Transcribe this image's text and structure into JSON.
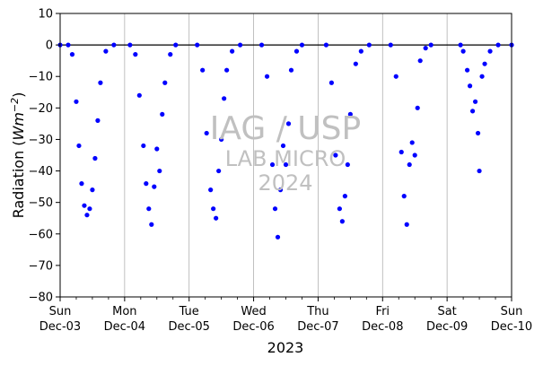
{
  "chart_data": {
    "type": "scatter",
    "ylabel": "Radiation ($Wm^{-2}$)",
    "ylabel_parts": {
      "main": "Radiation (",
      "unit": "Wm",
      "sup": "−2",
      "close": ")"
    },
    "xlabel": "2023",
    "ylim": [
      -80,
      10
    ],
    "yticks": [
      10,
      0,
      -10,
      -20,
      -30,
      -40,
      -50,
      -60,
      -70,
      -80
    ],
    "ytick_labels": [
      "10",
      "0",
      "−10",
      "−20",
      "−30",
      "−40",
      "−50",
      "−60",
      "−70",
      "−80"
    ],
    "xlim": [
      "2023-12-03",
      "2023-12-10"
    ],
    "xticks": [
      {
        "day": "Sun",
        "date": "Dec-03"
      },
      {
        "day": "Mon",
        "date": "Dec-04"
      },
      {
        "day": "Tue",
        "date": "Dec-05"
      },
      {
        "day": "Wed",
        "date": "Dec-06"
      },
      {
        "day": "Thu",
        "date": "Dec-07"
      },
      {
        "day": "Fri",
        "date": "Dec-08"
      },
      {
        "day": "Sat",
        "date": "Dec-09"
      },
      {
        "day": "Sun",
        "date": "Dec-10"
      }
    ],
    "grid": "vertical",
    "zero_line": true,
    "marker_color": "#0000ff",
    "series": [
      {
        "points": [
          [
            "2023-12-03 00:00",
            0
          ],
          [
            "2023-12-03 03:00",
            0
          ],
          [
            "2023-12-03 04:30",
            -3
          ],
          [
            "2023-12-03 06:00",
            -18
          ],
          [
            "2023-12-03 07:00",
            -32
          ],
          [
            "2023-12-03 08:00",
            -44
          ],
          [
            "2023-12-03 09:00",
            -51
          ],
          [
            "2023-12-03 10:00",
            -54
          ],
          [
            "2023-12-03 11:00",
            -52
          ],
          [
            "2023-12-03 12:00",
            -46
          ],
          [
            "2023-12-03 13:00",
            -36
          ],
          [
            "2023-12-03 14:00",
            -24
          ],
          [
            "2023-12-03 15:00",
            -12
          ],
          [
            "2023-12-03 17:00",
            -2
          ],
          [
            "2023-12-03 20:00",
            0
          ],
          [
            "2023-12-04 02:00",
            0
          ],
          [
            "2023-12-04 04:00",
            -3
          ],
          [
            "2023-12-04 05:30",
            -16
          ],
          [
            "2023-12-04 07:00",
            -32
          ],
          [
            "2023-12-04 08:00",
            -44
          ],
          [
            "2023-12-04 09:00",
            -52
          ],
          [
            "2023-12-04 10:00",
            -57
          ],
          [
            "2023-12-04 11:00",
            -45
          ],
          [
            "2023-12-04 12:00",
            -33
          ],
          [
            "2023-12-04 13:00",
            -40
          ],
          [
            "2023-12-04 14:00",
            -22
          ],
          [
            "2023-12-04 15:00",
            -12
          ],
          [
            "2023-12-04 17:00",
            -3
          ],
          [
            "2023-12-04 19:00",
            0
          ],
          [
            "2023-12-05 03:00",
            0
          ],
          [
            "2023-12-05 05:00",
            -8
          ],
          [
            "2023-12-05 06:30",
            -28
          ],
          [
            "2023-12-05 08:00",
            -46
          ],
          [
            "2023-12-05 09:00",
            -52
          ],
          [
            "2023-12-05 10:00",
            -55
          ],
          [
            "2023-12-05 11:00",
            -40
          ],
          [
            "2023-12-05 12:00",
            -30
          ],
          [
            "2023-12-05 13:00",
            -17
          ],
          [
            "2023-12-05 14:00",
            -8
          ],
          [
            "2023-12-05 16:00",
            -2
          ],
          [
            "2023-12-05 19:00",
            0
          ],
          [
            "2023-12-06 03:00",
            0
          ],
          [
            "2023-12-06 05:00",
            -10
          ],
          [
            "2023-12-06 07:00",
            -38
          ],
          [
            "2023-12-06 08:00",
            -52
          ],
          [
            "2023-12-06 09:00",
            -61
          ],
          [
            "2023-12-06 10:00",
            -46
          ],
          [
            "2023-12-06 11:00",
            -32
          ],
          [
            "2023-12-06 12:00",
            -38
          ],
          [
            "2023-12-06 13:00",
            -25
          ],
          [
            "2023-12-06 14:00",
            -8
          ],
          [
            "2023-12-06 16:00",
            -2
          ],
          [
            "2023-12-06 18:00",
            0
          ],
          [
            "2023-12-07 03:00",
            0
          ],
          [
            "2023-12-07 05:00",
            -12
          ],
          [
            "2023-12-07 06:30",
            -35
          ],
          [
            "2023-12-07 08:00",
            -52
          ],
          [
            "2023-12-07 09:00",
            -56
          ],
          [
            "2023-12-07 10:00",
            -48
          ],
          [
            "2023-12-07 11:00",
            -38
          ],
          [
            "2023-12-07 12:00",
            -22
          ],
          [
            "2023-12-07 14:00",
            -6
          ],
          [
            "2023-12-07 16:00",
            -2
          ],
          [
            "2023-12-07 19:00",
            0
          ],
          [
            "2023-12-08 03:00",
            0
          ],
          [
            "2023-12-08 05:00",
            -10
          ],
          [
            "2023-12-08 07:00",
            -34
          ],
          [
            "2023-12-08 08:00",
            -48
          ],
          [
            "2023-12-08 09:00",
            -57
          ],
          [
            "2023-12-08 10:00",
            -38
          ],
          [
            "2023-12-08 11:00",
            -31
          ],
          [
            "2023-12-08 12:00",
            -35
          ],
          [
            "2023-12-08 13:00",
            -20
          ],
          [
            "2023-12-08 14:00",
            -5
          ],
          [
            "2023-12-08 16:00",
            -1
          ],
          [
            "2023-12-08 18:00",
            0
          ],
          [
            "2023-12-09 05:00",
            0
          ],
          [
            "2023-12-09 06:00",
            -2
          ],
          [
            "2023-12-09 07:30",
            -8
          ],
          [
            "2023-12-09 08:30",
            -13
          ],
          [
            "2023-12-09 09:30",
            -21
          ],
          [
            "2023-12-09 10:30",
            -18
          ],
          [
            "2023-12-09 11:30",
            -28
          ],
          [
            "2023-12-09 12:00",
            -40
          ],
          [
            "2023-12-09 13:00",
            -10
          ],
          [
            "2023-12-09 14:00",
            -6
          ],
          [
            "2023-12-09 16:00",
            -2
          ],
          [
            "2023-12-09 19:00",
            0
          ],
          [
            "2023-12-10 00:00",
            0
          ]
        ]
      }
    ],
    "watermark": [
      "IAG / USP",
      "LAB MICRO",
      "2024"
    ]
  }
}
